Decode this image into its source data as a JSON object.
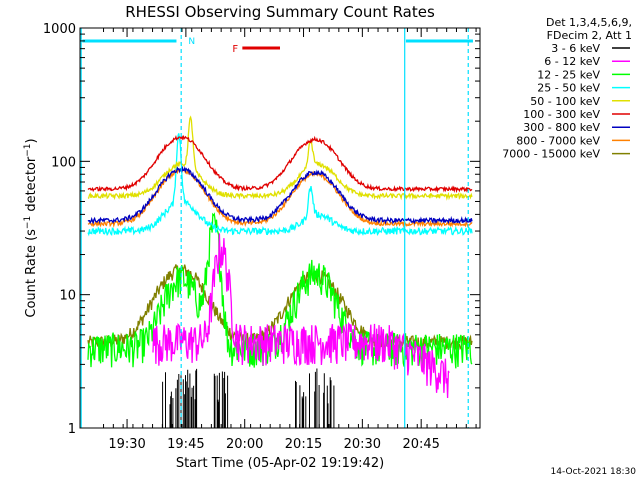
{
  "chart_data": {
    "type": "line",
    "title": "RHESSI Observing Summary Count Rates",
    "xlabel": "Start Time (05-Apr-02 19:19:42)",
    "ylabel": "Count Rate (s⁻¹ detector⁻¹)",
    "ylabel_base": "Count Rate (s",
    "ylabel_sup1": "−1",
    "ylabel_mid": " detector",
    "ylabel_sup2": "−1",
    "ylabel_end": ")",
    "y_scale": "log",
    "ylim": [
      1,
      1000
    ],
    "xlim_minutes": [
      19.3,
      21.0
    ],
    "x_ticks": [
      {
        "label": "19:30",
        "t": 19.5
      },
      {
        "label": "19:45",
        "t": 19.75
      },
      {
        "label": "20:00",
        "t": 20.0
      },
      {
        "label": "20:15",
        "t": 20.25
      },
      {
        "label": "20:30",
        "t": 20.5
      },
      {
        "label": "20:45",
        "t": 20.75
      }
    ],
    "y_ticks": [
      {
        "label": "1",
        "v": 1
      },
      {
        "label": "10",
        "v": 10
      },
      {
        "label": "100",
        "v": 100
      },
      {
        "label": "1000",
        "v": 1000
      }
    ],
    "legend_header": [
      "Det 1,3,4,5,6,9,",
      "FDecim 2, Att 1"
    ],
    "series": [
      {
        "name": "3 - 6 keV",
        "color": "#000000"
      },
      {
        "name": "6 - 12 keV",
        "color": "#ff00ff"
      },
      {
        "name": "12 - 25 keV",
        "color": "#00ff00"
      },
      {
        "name": "25 - 50 keV",
        "color": "#00ffff"
      },
      {
        "name": "50 - 100 keV",
        "color": "#e0e000"
      },
      {
        "name": "100 - 300 keV",
        "color": "#e00000"
      },
      {
        "name": "300 - 800 keV",
        "color": "#0000c0"
      },
      {
        "name": "800 - 7000 keV",
        "color": "#ff8000"
      },
      {
        "name": "7000 - 15000 keV",
        "color": "#808000"
      }
    ],
    "annotations": [
      {
        "label": "N",
        "color": "#00e0ff"
      },
      {
        "label": "F",
        "color": "#e00000"
      }
    ],
    "footer_date": "14-Oct-2021 18:30"
  }
}
